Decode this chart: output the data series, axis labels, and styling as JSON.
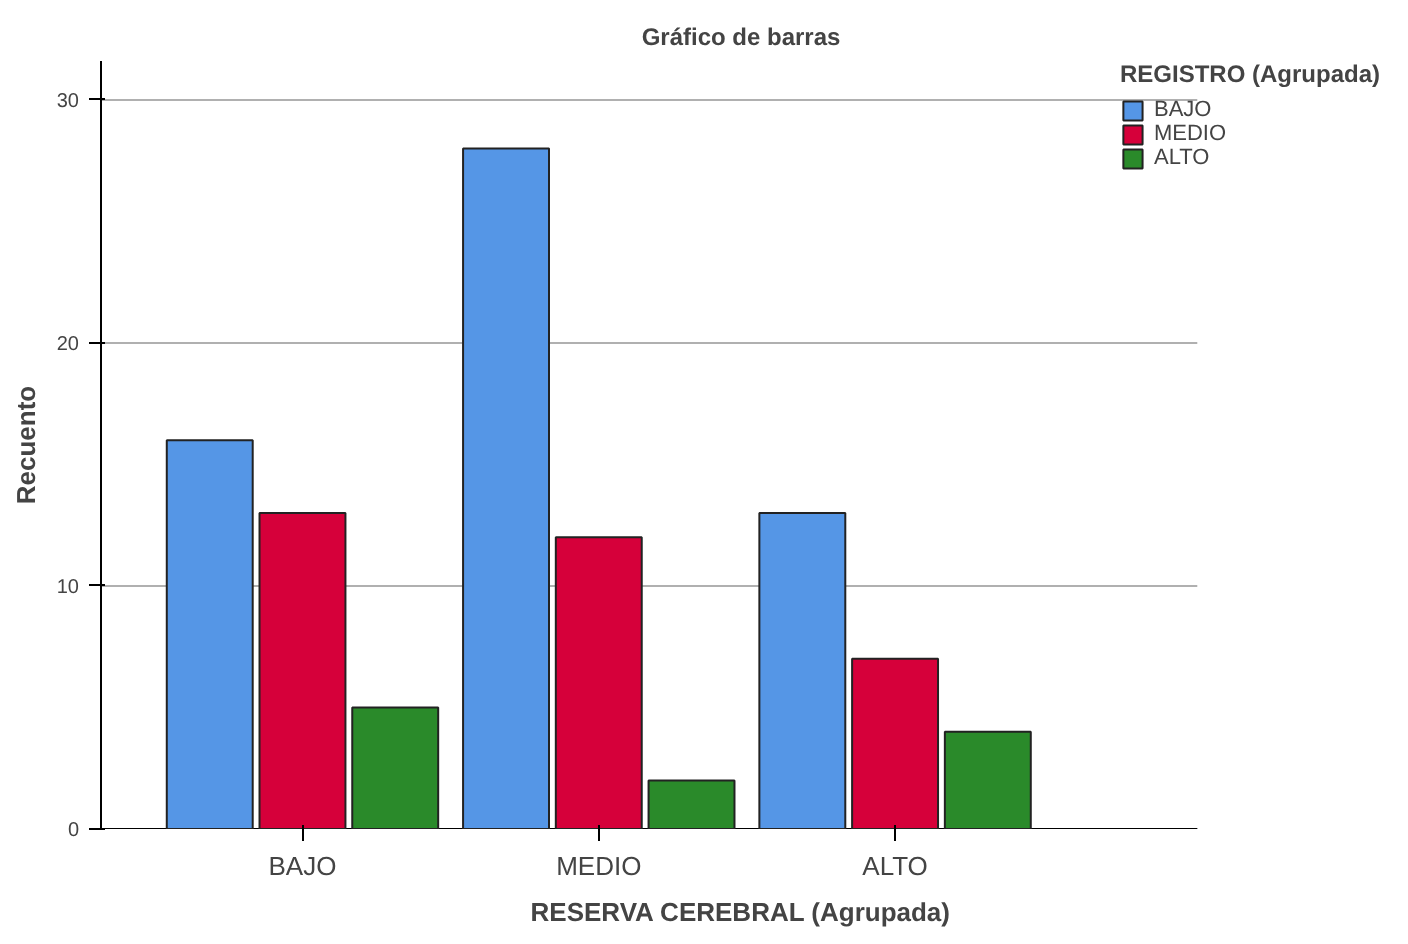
{
  "chart_data": {
    "type": "bar",
    "title": "Gráfico de barras",
    "xlabel": "RESERVA CEREBRAL (Agrupada)",
    "ylabel": "Recuento",
    "legend_title": "REGISTRO (Agrupada)",
    "categories": [
      "BAJO",
      "MEDIO",
      "ALTO"
    ],
    "series": [
      {
        "name": "BAJO",
        "color": "#5596e6",
        "values": [
          16,
          28,
          13
        ]
      },
      {
        "name": "MEDIO",
        "color": "#d6003a",
        "values": [
          13,
          12,
          7
        ]
      },
      {
        "name": "ALTO",
        "color": "#2a8a2a",
        "values": [
          5,
          2,
          4
        ]
      }
    ],
    "ylim": [
      0,
      31.6
    ],
    "yticks": [
      0,
      10,
      20,
      30
    ],
    "grid": "y",
    "legend": "top right"
  }
}
